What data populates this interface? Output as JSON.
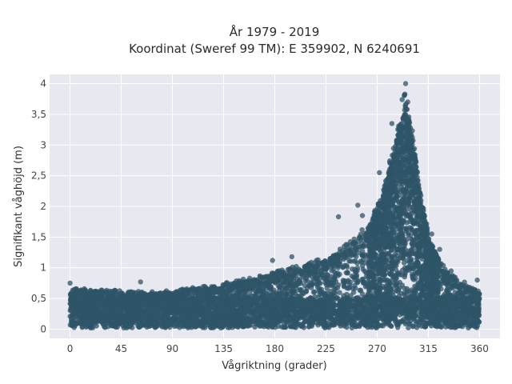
{
  "chart_data": {
    "type": "scatter",
    "title_lines": [
      "År 1979 - 2019",
      "Koordinat (Sweref 99 TM): E 359902, N 6240691"
    ],
    "xlabel": "Vågriktning (grader)",
    "ylabel": "Signifikant våghöjd (m)",
    "xlim": [
      -18,
      378
    ],
    "ylim": [
      -0.15,
      4.15
    ],
    "x_ticks": [
      0,
      45,
      90,
      135,
      180,
      225,
      270,
      315,
      360
    ],
    "x_tick_labels": [
      "0",
      "45",
      "90",
      "135",
      "180",
      "225",
      "270",
      "315",
      "360"
    ],
    "y_ticks": [
      0,
      0.5,
      1,
      1.5,
      2,
      2.5,
      3,
      3.5,
      4
    ],
    "y_tick_labels": [
      "0",
      "0,5",
      "1",
      "1,5",
      "2",
      "2,5",
      "3",
      "3,5",
      "4"
    ],
    "grid": true,
    "background_color": "#e8e8f0",
    "point_color": "#2f5468",
    "envelope": {
      "direction": [
        0,
        20,
        45,
        70,
        90,
        110,
        135,
        160,
        180,
        200,
        225,
        245,
        260,
        270,
        278,
        285,
        290,
        295,
        300,
        305,
        310,
        315,
        325,
        335,
        345,
        360
      ],
      "max_height": [
        0.65,
        0.62,
        0.6,
        0.58,
        0.6,
        0.66,
        0.72,
        0.8,
        0.9,
        1.0,
        1.12,
        1.35,
        1.6,
        2.0,
        2.4,
        2.9,
        3.4,
        3.7,
        3.3,
        2.6,
        2.0,
        1.5,
        1.1,
        0.85,
        0.75,
        0.6
      ]
    },
    "outliers": [
      {
        "x": 0,
        "y": 0.75
      },
      {
        "x": 62,
        "y": 0.77
      },
      {
        "x": 178,
        "y": 1.12
      },
      {
        "x": 195,
        "y": 1.18
      },
      {
        "x": 236,
        "y": 1.83
      },
      {
        "x": 253,
        "y": 2.02
      },
      {
        "x": 257,
        "y": 1.85
      },
      {
        "x": 272,
        "y": 2.55
      },
      {
        "x": 283,
        "y": 3.35
      },
      {
        "x": 292,
        "y": 3.74
      },
      {
        "x": 295,
        "y": 4.0
      },
      {
        "x": 318,
        "y": 1.55
      },
      {
        "x": 325,
        "y": 1.3
      },
      {
        "x": 335,
        "y": 0.95
      },
      {
        "x": 358,
        "y": 0.8
      }
    ]
  }
}
